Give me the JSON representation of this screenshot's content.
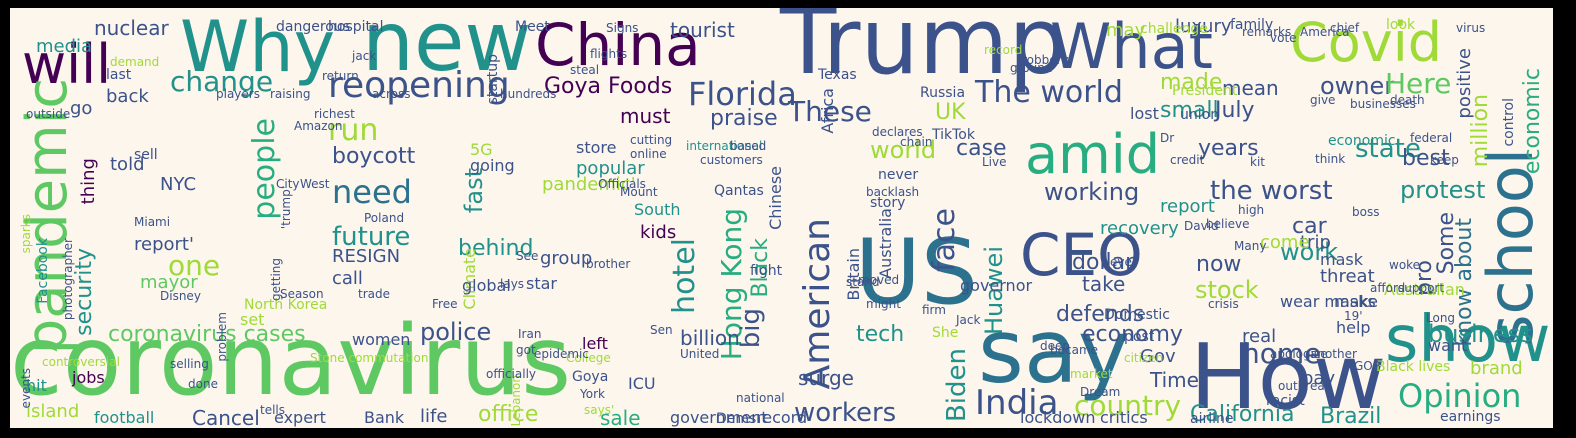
{
  "palette": {
    "frame": "#000000",
    "background": "#fdf6ec",
    "colors": [
      "#440154",
      "#3b528b",
      "#21918c",
      "#5ec962",
      "#a0da39",
      "#fde725",
      "#2c728e",
      "#27ad81"
    ]
  },
  "words": [
    {
      "text": "coronavirus",
      "color": "#5ec962"
    },
    {
      "text": "Trump",
      "color": "#3b528b"
    },
    {
      "text": "new",
      "color": "#21918c"
    },
    {
      "text": "Why",
      "color": "#21918c"
    },
    {
      "text": "China",
      "color": "#440154"
    },
    {
      "text": "What",
      "color": "#3b528b"
    },
    {
      "text": "Covid",
      "color": "#a0da39"
    },
    {
      "text": "will",
      "color": "#440154"
    },
    {
      "text": "US",
      "color": "#2c728e"
    },
    {
      "text": "say",
      "color": "#2c728e"
    },
    {
      "text": "How",
      "color": "#3b528b"
    },
    {
      "text": "show",
      "color": "#21918c"
    },
    {
      "text": "CEO",
      "color": "#3b528b"
    },
    {
      "text": "amid",
      "color": "#27ad81"
    },
    {
      "text": "school",
      "color": "#2c728e"
    },
    {
      "text": "pandemic",
      "color": "#5ec962"
    },
    {
      "text": "reopening",
      "color": "#3b528b"
    },
    {
      "text": "Florida",
      "color": "#3b528b"
    },
    {
      "text": "The world",
      "color": "#3b528b"
    },
    {
      "text": "need",
      "color": "#2c728e"
    },
    {
      "text": "people",
      "color": "#27ad81"
    },
    {
      "text": "American",
      "color": "#3b528b"
    },
    {
      "text": "India",
      "color": "#3b528b"
    },
    {
      "text": "country",
      "color": "#a0da39"
    },
    {
      "text": "Opinion",
      "color": "#27ad81"
    },
    {
      "text": "economic",
      "color": "#27ad81"
    },
    {
      "text": "change",
      "color": "#21918c"
    },
    {
      "text": "Goya Foods",
      "color": "#440154"
    },
    {
      "text": "These",
      "color": "#3b528b"
    },
    {
      "text": "owner",
      "color": "#3b528b"
    },
    {
      "text": "Here",
      "color": "#5ec962"
    },
    {
      "text": "July",
      "color": "#3b528b"
    },
    {
      "text": "run",
      "color": "#a0da39"
    },
    {
      "text": "UK",
      "color": "#a0da39"
    },
    {
      "text": "praise",
      "color": "#3b528b"
    },
    {
      "text": "made",
      "color": "#a0da39"
    },
    {
      "text": "small",
      "color": "#21918c"
    },
    {
      "text": "mean",
      "color": "#3b528b"
    },
    {
      "text": "face",
      "color": "#3b528b"
    },
    {
      "text": "Hong Kong",
      "color": "#27ad81"
    },
    {
      "text": "hotel",
      "color": "#21918c"
    },
    {
      "text": "Black",
      "color": "#27ad81"
    },
    {
      "text": "big",
      "color": "#3b528b"
    },
    {
      "text": "Huawei",
      "color": "#21918c"
    },
    {
      "text": "Biden",
      "color": "#21918c"
    },
    {
      "text": "home",
      "color": "#3b528b"
    },
    {
      "text": "workers",
      "color": "#3b528b"
    },
    {
      "text": "California",
      "color": "#21918c"
    },
    {
      "text": "Brazil",
      "color": "#21918c"
    },
    {
      "text": "business",
      "color": "#21918c"
    },
    {
      "text": "state",
      "color": "#21918c"
    },
    {
      "text": "million",
      "color": "#a0da39"
    },
    {
      "text": "know about",
      "color": "#2c728e"
    },
    {
      "text": "one",
      "color": "#a0da39"
    },
    {
      "text": "future",
      "color": "#21918c"
    },
    {
      "text": "boycott",
      "color": "#3b528b"
    },
    {
      "text": "security",
      "color": "#21918c"
    },
    {
      "text": "coronavirus cases",
      "color": "#5ec962"
    },
    {
      "text": "police",
      "color": "#3b528b"
    },
    {
      "text": "billion",
      "color": "#3b528b"
    },
    {
      "text": "economy",
      "color": "#3b528b"
    },
    {
      "text": "office",
      "color": "#a0da39"
    },
    {
      "text": "sale",
      "color": "#27ad81"
    },
    {
      "text": "Cancel",
      "color": "#3b528b"
    },
    {
      "text": "stock",
      "color": "#a0da39"
    },
    {
      "text": "dollar",
      "color": "#3b528b"
    },
    {
      "text": "the worst",
      "color": "#3b528b"
    },
    {
      "text": "working",
      "color": "#3b528b"
    },
    {
      "text": "years",
      "color": "#3b528b"
    },
    {
      "text": "work",
      "color": "#21918c"
    },
    {
      "text": "car",
      "color": "#3b528b"
    },
    {
      "text": "best",
      "color": "#3b528b"
    },
    {
      "text": "protest",
      "color": "#21918c"
    },
    {
      "text": "world",
      "color": "#a0da39"
    },
    {
      "text": "case",
      "color": "#3b528b"
    },
    {
      "text": "tech",
      "color": "#21918c"
    },
    {
      "text": "surge",
      "color": "#3b528b"
    },
    {
      "text": "Time",
      "color": "#3b528b"
    },
    {
      "text": "now",
      "color": "#3b528b"
    },
    {
      "text": "take",
      "color": "#3b528b"
    },
    {
      "text": "defends",
      "color": "#3b528b"
    },
    {
      "text": "nuclear",
      "color": "#3b528b"
    },
    {
      "text": "tourist",
      "color": "#3b528b"
    },
    {
      "text": "luxury",
      "color": "#3b528b"
    },
    {
      "text": "media",
      "color": "#21918c"
    },
    {
      "text": "back",
      "color": "#3b528b"
    },
    {
      "text": "go",
      "color": "#3b528b"
    },
    {
      "text": "must",
      "color": "#440154"
    },
    {
      "text": "thing",
      "color": "#440154"
    },
    {
      "text": "told",
      "color": "#3b528b"
    },
    {
      "text": "NYC",
      "color": "#3b528b"
    },
    {
      "text": "RESIGN",
      "color": "#3b528b"
    },
    {
      "text": "call",
      "color": "#3b528b"
    },
    {
      "text": "report'",
      "color": "#3b528b"
    },
    {
      "text": "mayor",
      "color": "#5ec962"
    },
    {
      "text": "behind",
      "color": "#21918c"
    },
    {
      "text": "group",
      "color": "#3b528b"
    },
    {
      "text": "kids",
      "color": "#440154"
    },
    {
      "text": "South",
      "color": "#21918c"
    },
    {
      "text": "pandemic'",
      "color": "#a0da39"
    },
    {
      "text": "popular",
      "color": "#21918c"
    },
    {
      "text": "store",
      "color": "#3b528b"
    },
    {
      "text": "fast",
      "color": "#21918c"
    },
    {
      "text": "Climate",
      "color": "#a0da39"
    },
    {
      "text": "jobs",
      "color": "#440154"
    },
    {
      "text": "football",
      "color": "#21918c"
    },
    {
      "text": "island",
      "color": "#a0da39"
    },
    {
      "text": "hit",
      "color": "#21918c"
    },
    {
      "text": "expert",
      "color": "#3b528b"
    },
    {
      "text": "Bank",
      "color": "#3b528b"
    },
    {
      "text": "life",
      "color": "#3b528b"
    },
    {
      "text": "left",
      "color": "#440154"
    },
    {
      "text": "women",
      "color": "#3b528b"
    },
    {
      "text": "set",
      "color": "#a0da39"
    },
    {
      "text": "Gov",
      "color": "#3b528b"
    },
    {
      "text": "real",
      "color": "#3b528b"
    },
    {
      "text": "pay",
      "color": "#3b528b"
    },
    {
      "text": "want",
      "color": "#3b528b"
    },
    {
      "text": "brand",
      "color": "#a0da39"
    },
    {
      "text": "help",
      "color": "#3b528b"
    },
    {
      "text": "trip",
      "color": "#3b528b"
    },
    {
      "text": "mask",
      "color": "#3b528b"
    },
    {
      "text": "threat",
      "color": "#3b528b"
    },
    {
      "text": "pro",
      "color": "#3b528b"
    },
    {
      "text": "Some",
      "color": "#3b528b"
    },
    {
      "text": "report",
      "color": "#21918c"
    },
    {
      "text": "recovery",
      "color": "#21918c"
    },
    {
      "text": "lockdown",
      "color": "#3b528b"
    },
    {
      "text": "critics",
      "color": "#3b528b"
    },
    {
      "text": "airline",
      "color": "#3b528b"
    },
    {
      "text": "government",
      "color": "#3b528b"
    },
    {
      "text": "record",
      "color": "#3b528b"
    },
    {
      "text": "Dems",
      "color": "#3b528b"
    },
    {
      "text": "ICU",
      "color": "#3b528b"
    },
    {
      "text": "Goya",
      "color": "#3b528b"
    },
    {
      "text": "global",
      "color": "#3b528b"
    },
    {
      "text": "star",
      "color": "#3b528b"
    },
    {
      "text": "going",
      "color": "#3b528b"
    },
    {
      "text": "5G",
      "color": "#a0da39"
    },
    {
      "text": "Australia",
      "color": "#3b528b"
    },
    {
      "text": "Chinese",
      "color": "#3b528b"
    },
    {
      "text": "Britain",
      "color": "#3b528b"
    },
    {
      "text": "story",
      "color": "#3b528b"
    },
    {
      "text": "never",
      "color": "#3b528b"
    },
    {
      "text": "TikTok",
      "color": "#3b528b"
    },
    {
      "text": "Africa",
      "color": "#3b528b"
    },
    {
      "text": "Texas",
      "color": "#3b528b"
    },
    {
      "text": "Russia",
      "color": "#3b528b"
    },
    {
      "text": "President",
      "color": "#a0da39"
    },
    {
      "text": "union",
      "color": "#3b528b"
    },
    {
      "text": "lost",
      "color": "#3b528b"
    },
    {
      "text": "dangerous",
      "color": "#3b528b"
    },
    {
      "text": "hospital",
      "color": "#3b528b"
    },
    {
      "text": "Meet",
      "color": "#3b528b"
    },
    {
      "text": "family",
      "color": "#3b528b"
    },
    {
      "text": "look",
      "color": "#a0da39"
    },
    {
      "text": "may",
      "color": "#a0da39"
    },
    {
      "text": "positive",
      "color": "#3b528b"
    },
    {
      "text": "come",
      "color": "#a0da39"
    },
    {
      "text": "make",
      "color": "#3b528b"
    },
    {
      "text": "wear masks",
      "color": "#3b528b"
    },
    {
      "text": "Australian",
      "color": "#a0da39"
    },
    {
      "text": "Black lives",
      "color": "#a0da39"
    },
    {
      "text": "earnings",
      "color": "#3b528b"
    },
    {
      "text": "racist",
      "color": "#3b528b"
    },
    {
      "text": "post",
      "color": "#3b528b"
    },
    {
      "text": "Domestic",
      "color": "#3b528b"
    },
    {
      "text": "She",
      "color": "#a0da39"
    },
    {
      "text": "governor",
      "color": "#3b528b"
    },
    {
      "text": "North Korea",
      "color": "#a0da39"
    },
    {
      "text": "Facebook",
      "color": "#21918c"
    },
    {
      "text": "Disney",
      "color": "#3b528b"
    },
    {
      "text": "City",
      "color": "#3b528b"
    },
    {
      "text": "West",
      "color": "#3b528b"
    },
    {
      "text": "Poland",
      "color": "#3b528b"
    },
    {
      "text": "richest",
      "color": "#3b528b"
    },
    {
      "text": "Amazon",
      "color": "#3b528b"
    },
    {
      "text": "Qantas",
      "color": "#3b528b"
    },
    {
      "text": "fight",
      "color": "#3b528b"
    },
    {
      "text": "economic",
      "color": "#21918c"
    },
    {
      "text": "control",
      "color": "#3b528b"
    },
    {
      "text": "startup",
      "color": "#3b528b"
    },
    {
      "text": "return",
      "color": "#3b528b"
    },
    {
      "text": "jack",
      "color": "#3b528b"
    },
    {
      "text": "last",
      "color": "#3b528b"
    },
    {
      "text": "demand",
      "color": "#a0da39"
    },
    {
      "text": "sell",
      "color": "#3b528b"
    },
    {
      "text": "Miami",
      "color": "#3b528b"
    },
    {
      "text": "selling",
      "color": "#3b528b"
    },
    {
      "text": "done",
      "color": "#3b528b"
    },
    {
      "text": "See",
      "color": "#3b528b"
    },
    {
      "text": "lays",
      "color": "#3b528b"
    },
    {
      "text": "Free",
      "color": "#3b528b"
    },
    {
      "text": "trade",
      "color": "#3b528b"
    },
    {
      "text": "Season",
      "color": "#3b528b"
    },
    {
      "text": "getting",
      "color": "#3b528b"
    },
    {
      "text": "cutting",
      "color": "#3b528b"
    },
    {
      "text": "online",
      "color": "#3b528b"
    },
    {
      "text": "Officials",
      "color": "#3b528b"
    },
    {
      "text": "Mount",
      "color": "#3b528b"
    },
    {
      "text": "brother",
      "color": "#3b528b"
    },
    {
      "text": "Sen",
      "color": "#3b528b"
    },
    {
      "text": "United",
      "color": "#3b528b"
    },
    {
      "text": "national",
      "color": "#3b528b"
    },
    {
      "text": "stand",
      "color": "#3b528b"
    },
    {
      "text": "might",
      "color": "#3b528b"
    },
    {
      "text": "moved",
      "color": "#3b528b"
    },
    {
      "text": "firm",
      "color": "#3b528b"
    },
    {
      "text": "Jack",
      "color": "#3b528b"
    },
    {
      "text": "deep",
      "color": "#3b528b"
    },
    {
      "text": "ever'",
      "color": "#3b528b"
    },
    {
      "text": "became",
      "color": "#3b528b"
    },
    {
      "text": "apologize",
      "color": "#3b528b"
    },
    {
      "text": "outbreak",
      "color": "#3b528b"
    },
    {
      "text": "another",
      "color": "#3b528b"
    },
    {
      "text": "afford",
      "color": "#3b528b"
    },
    {
      "text": "19'",
      "color": "#3b528b"
    },
    {
      "text": "support",
      "color": "#3b528b"
    },
    {
      "text": "declares",
      "color": "#3b528b"
    },
    {
      "text": "chain",
      "color": "#3b528b"
    },
    {
      "text": "credit",
      "color": "#3b528b"
    },
    {
      "text": "keep",
      "color": "#3b528b"
    },
    {
      "text": "federal",
      "color": "#3b528b"
    },
    {
      "text": "kit",
      "color": "#3b528b"
    },
    {
      "text": "Many",
      "color": "#3b528b"
    },
    {
      "text": "believe",
      "color": "#3b528b"
    },
    {
      "text": "Live",
      "color": "#3b528b"
    },
    {
      "text": "backlash",
      "color": "#3b528b"
    },
    {
      "text": "'trump'",
      "color": "#3b528b"
    },
    {
      "text": "Stone commutation",
      "color": "#a0da39"
    },
    {
      "text": "problem",
      "color": "#3b528b"
    },
    {
      "text": "international",
      "color": "#21918c"
    },
    {
      "text": "customers",
      "color": "#3b528b"
    },
    {
      "text": "hundreds",
      "color": "#3b528b"
    },
    {
      "text": "businesses",
      "color": "#3b528b"
    },
    {
      "text": "give",
      "color": "#3b528b"
    },
    {
      "text": "death",
      "color": "#3b528b"
    },
    {
      "text": "remarks",
      "color": "#3b528b"
    },
    {
      "text": "America",
      "color": "#3b528b"
    },
    {
      "text": "vote",
      "color": "#3b528b"
    },
    {
      "text": "chief",
      "color": "#3b528b"
    },
    {
      "text": "challenge",
      "color": "#a0da39"
    },
    {
      "text": "record",
      "color": "#a0da39"
    },
    {
      "text": "ground",
      "color": "#3b528b"
    },
    {
      "text": "robbery",
      "color": "#3b528b"
    },
    {
      "text": "virus",
      "color": "#3b528b"
    },
    {
      "text": "Signs",
      "color": "#3b528b"
    },
    {
      "text": "flights",
      "color": "#3b528b"
    },
    {
      "text": "steal",
      "color": "#3b528b"
    },
    {
      "text": "across",
      "color": "#3b528b"
    },
    {
      "text": "raising",
      "color": "#3b528b"
    },
    {
      "text": "players",
      "color": "#3b528b"
    },
    {
      "text": "outside",
      "color": "#3b528b"
    },
    {
      "text": "crisis",
      "color": "#3b528b"
    },
    {
      "text": "market",
      "color": "#a0da39"
    },
    {
      "text": "Dream",
      "color": "#3b528b"
    },
    {
      "text": "GOP",
      "color": "#3b528b"
    },
    {
      "text": "Dr",
      "color": "#3b528b"
    },
    {
      "text": "David",
      "color": "#3b528b"
    },
    {
      "text": "high",
      "color": "#3b528b"
    },
    {
      "text": "sparks",
      "color": "#a0da39"
    },
    {
      "text": "photographer",
      "color": "#3b528b"
    },
    {
      "text": "controversial",
      "color": "#a0da39"
    },
    {
      "text": "events",
      "color": "#3b528b"
    },
    {
      "text": "Lebanon",
      "color": "#a0da39"
    },
    {
      "text": "officially",
      "color": "#3b528b"
    },
    {
      "text": "got",
      "color": "#3b528b"
    },
    {
      "text": "College",
      "color": "#a0da39"
    },
    {
      "text": "epidemic",
      "color": "#3b528b"
    },
    {
      "text": "Iran",
      "color": "#3b528b"
    },
    {
      "text": "York",
      "color": "#3b528b"
    },
    {
      "text": "says'",
      "color": "#a0da39"
    },
    {
      "text": "tells",
      "color": "#3b528b"
    },
    {
      "text": "citizen",
      "color": "#a0da39"
    },
    {
      "text": "based",
      "color": "#3b528b"
    },
    {
      "text": "think",
      "color": "#3b528b"
    },
    {
      "text": "boss",
      "color": "#3b528b"
    },
    {
      "text": "woke",
      "color": "#3b528b"
    },
    {
      "text": "Long",
      "color": "#3b528b"
    }
  ]
}
